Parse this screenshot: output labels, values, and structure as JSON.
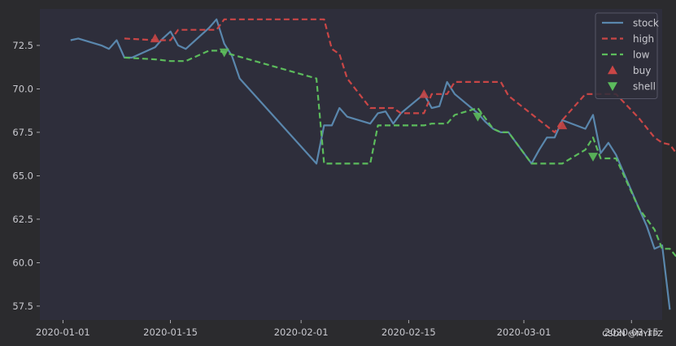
{
  "chart_data": {
    "type": "line",
    "title": "",
    "xlabel": "",
    "ylabel": "",
    "x_tick_labels": [
      "2020-01-01",
      "2020-01-15",
      "2020-02-01",
      "2020-02-15",
      "2020-03-01",
      "2020-03-15"
    ],
    "y_tick_labels": [
      "57.5",
      "60.0",
      "62.5",
      "65.0",
      "67.5",
      "70.0",
      "72.5"
    ],
    "xlim": [
      "2019-12-29",
      "2020-03-19"
    ],
    "ylim": [
      56.7,
      74.6
    ],
    "grid": false,
    "legend_position": "top-right",
    "watermark": "CSDN @MYFFZ",
    "colors": {
      "figure_bg": "#2b2b2e",
      "plot_bg": "#2e2e3b",
      "text": "#c9c9cf",
      "stock": "#5a87ad",
      "high": "#c94646",
      "low": "#5cbc5c",
      "legend_bg": "#2e2e3b",
      "legend_border": "#555566"
    },
    "series": [
      {
        "name": "stock",
        "style": "solid",
        "points": [
          [
            "2020-01-02",
            72.8
          ],
          [
            "2020-01-03",
            72.9
          ],
          [
            "2020-01-06",
            72.5
          ],
          [
            "2020-01-07",
            72.3
          ],
          [
            "2020-01-08",
            72.8
          ],
          [
            "2020-01-09",
            71.8
          ],
          [
            "2020-01-10",
            71.8
          ],
          [
            "2020-01-13",
            72.4
          ],
          [
            "2020-01-14",
            72.9
          ],
          [
            "2020-01-15",
            73.3
          ],
          [
            "2020-01-16",
            72.5
          ],
          [
            "2020-01-17",
            72.3
          ],
          [
            "2020-01-20",
            73.5
          ],
          [
            "2020-01-21",
            74.0
          ],
          [
            "2020-01-22",
            72.6
          ],
          [
            "2020-01-23",
            71.9
          ],
          [
            "2020-01-24",
            70.6
          ],
          [
            "2020-02-03",
            65.7
          ],
          [
            "2020-02-04",
            67.9
          ],
          [
            "2020-02-05",
            67.9
          ],
          [
            "2020-02-06",
            68.9
          ],
          [
            "2020-02-07",
            68.4
          ],
          [
            "2020-02-10",
            68.0
          ],
          [
            "2020-02-11",
            68.6
          ],
          [
            "2020-02-12",
            68.7
          ],
          [
            "2020-02-13",
            68.0
          ],
          [
            "2020-02-14",
            68.6
          ],
          [
            "2020-02-17",
            69.7
          ],
          [
            "2020-02-18",
            68.9
          ],
          [
            "2020-02-19",
            69.0
          ],
          [
            "2020-02-20",
            70.4
          ],
          [
            "2020-02-21",
            69.7
          ],
          [
            "2020-02-24",
            68.6
          ],
          [
            "2020-02-25",
            68.1
          ],
          [
            "2020-02-26",
            67.7
          ],
          [
            "2020-02-27",
            67.5
          ],
          [
            "2020-02-28",
            67.5
          ],
          [
            "2020-03-02",
            65.7
          ],
          [
            "2020-03-03",
            66.5
          ],
          [
            "2020-03-04",
            67.2
          ],
          [
            "2020-03-05",
            67.2
          ],
          [
            "2020-03-06",
            68.2
          ],
          [
            "2020-03-09",
            67.7
          ],
          [
            "2020-03-10",
            68.5
          ],
          [
            "2020-03-11",
            66.3
          ],
          [
            "2020-03-12",
            66.9
          ],
          [
            "2020-03-13",
            66.2
          ],
          [
            "2020-03-16",
            63.1
          ],
          [
            "2020-03-17",
            62.1
          ],
          [
            "2020-03-18",
            60.8
          ],
          [
            "2020-03-19",
            61.0
          ],
          [
            "2020-03-20",
            57.3
          ]
        ]
      },
      {
        "name": "high",
        "style": "dashed",
        "points": [
          [
            "2020-01-09",
            72.9
          ],
          [
            "2020-01-13",
            72.8
          ],
          [
            "2020-01-15",
            72.8
          ],
          [
            "2020-01-16",
            73.4
          ],
          [
            "2020-01-20",
            73.4
          ],
          [
            "2020-01-21",
            73.4
          ],
          [
            "2020-01-22",
            74.0
          ],
          [
            "2020-02-03",
            74.0
          ],
          [
            "2020-02-04",
            74.0
          ],
          [
            "2020-02-05",
            72.3
          ],
          [
            "2020-02-06",
            72.0
          ],
          [
            "2020-02-07",
            70.6
          ],
          [
            "2020-02-10",
            68.9
          ],
          [
            "2020-02-12",
            68.9
          ],
          [
            "2020-02-13",
            68.9
          ],
          [
            "2020-02-14",
            68.6
          ],
          [
            "2020-02-17",
            68.6
          ],
          [
            "2020-02-18",
            69.7
          ],
          [
            "2020-02-20",
            69.7
          ],
          [
            "2020-02-21",
            70.4
          ],
          [
            "2020-02-27",
            70.4
          ],
          [
            "2020-02-28",
            69.6
          ],
          [
            "2020-03-05",
            67.5
          ],
          [
            "2020-03-06",
            68.2
          ],
          [
            "2020-03-09",
            69.7
          ],
          [
            "2020-03-12",
            69.7
          ],
          [
            "2020-03-13",
            69.7
          ],
          [
            "2020-03-16",
            68.3
          ],
          [
            "2020-03-18",
            67.2
          ],
          [
            "2020-03-19",
            66.9
          ],
          [
            "2020-03-20",
            66.8
          ],
          [
            "2020-03-23",
            65.0
          ]
        ]
      },
      {
        "name": "low",
        "style": "dashed",
        "points": [
          [
            "2020-01-09",
            71.8
          ],
          [
            "2020-01-13",
            71.7
          ],
          [
            "2020-01-15",
            71.6
          ],
          [
            "2020-01-16",
            71.6
          ],
          [
            "2020-01-17",
            71.6
          ],
          [
            "2020-01-20",
            72.2
          ],
          [
            "2020-01-21",
            72.2
          ],
          [
            "2020-01-22",
            72.1
          ],
          [
            "2020-02-03",
            70.6
          ],
          [
            "2020-02-04",
            65.7
          ],
          [
            "2020-02-05",
            65.7
          ],
          [
            "2020-02-06",
            65.7
          ],
          [
            "2020-02-07",
            65.7
          ],
          [
            "2020-02-10",
            65.7
          ],
          [
            "2020-02-11",
            67.9
          ],
          [
            "2020-02-14",
            67.9
          ],
          [
            "2020-02-17",
            67.9
          ],
          [
            "2020-02-18",
            68.0
          ],
          [
            "2020-02-20",
            68.0
          ],
          [
            "2020-02-21",
            68.5
          ],
          [
            "2020-02-24",
            68.9
          ],
          [
            "2020-02-26",
            67.7
          ],
          [
            "2020-02-27",
            67.5
          ],
          [
            "2020-02-28",
            67.5
          ],
          [
            "2020-03-02",
            65.7
          ],
          [
            "2020-03-06",
            65.7
          ],
          [
            "2020-03-09",
            66.5
          ],
          [
            "2020-03-10",
            67.2
          ],
          [
            "2020-03-11",
            66.0
          ],
          [
            "2020-03-13",
            66.0
          ],
          [
            "2020-03-16",
            63.1
          ],
          [
            "2020-03-18",
            61.9
          ],
          [
            "2020-03-19",
            60.8
          ],
          [
            "2020-03-20",
            60.8
          ],
          [
            "2020-03-23",
            59.2
          ]
        ]
      }
    ],
    "markers": [
      {
        "name": "buy",
        "marker": "triangle-up",
        "points": [
          [
            "2020-01-13",
            72.9
          ],
          [
            "2020-02-17",
            69.7
          ],
          [
            "2020-03-06",
            67.9
          ]
        ]
      },
      {
        "name": "shell",
        "marker": "triangle-down",
        "points": [
          [
            "2020-01-22",
            72.1
          ],
          [
            "2020-02-24",
            68.4
          ],
          [
            "2020-03-10",
            66.1
          ]
        ]
      }
    ]
  }
}
